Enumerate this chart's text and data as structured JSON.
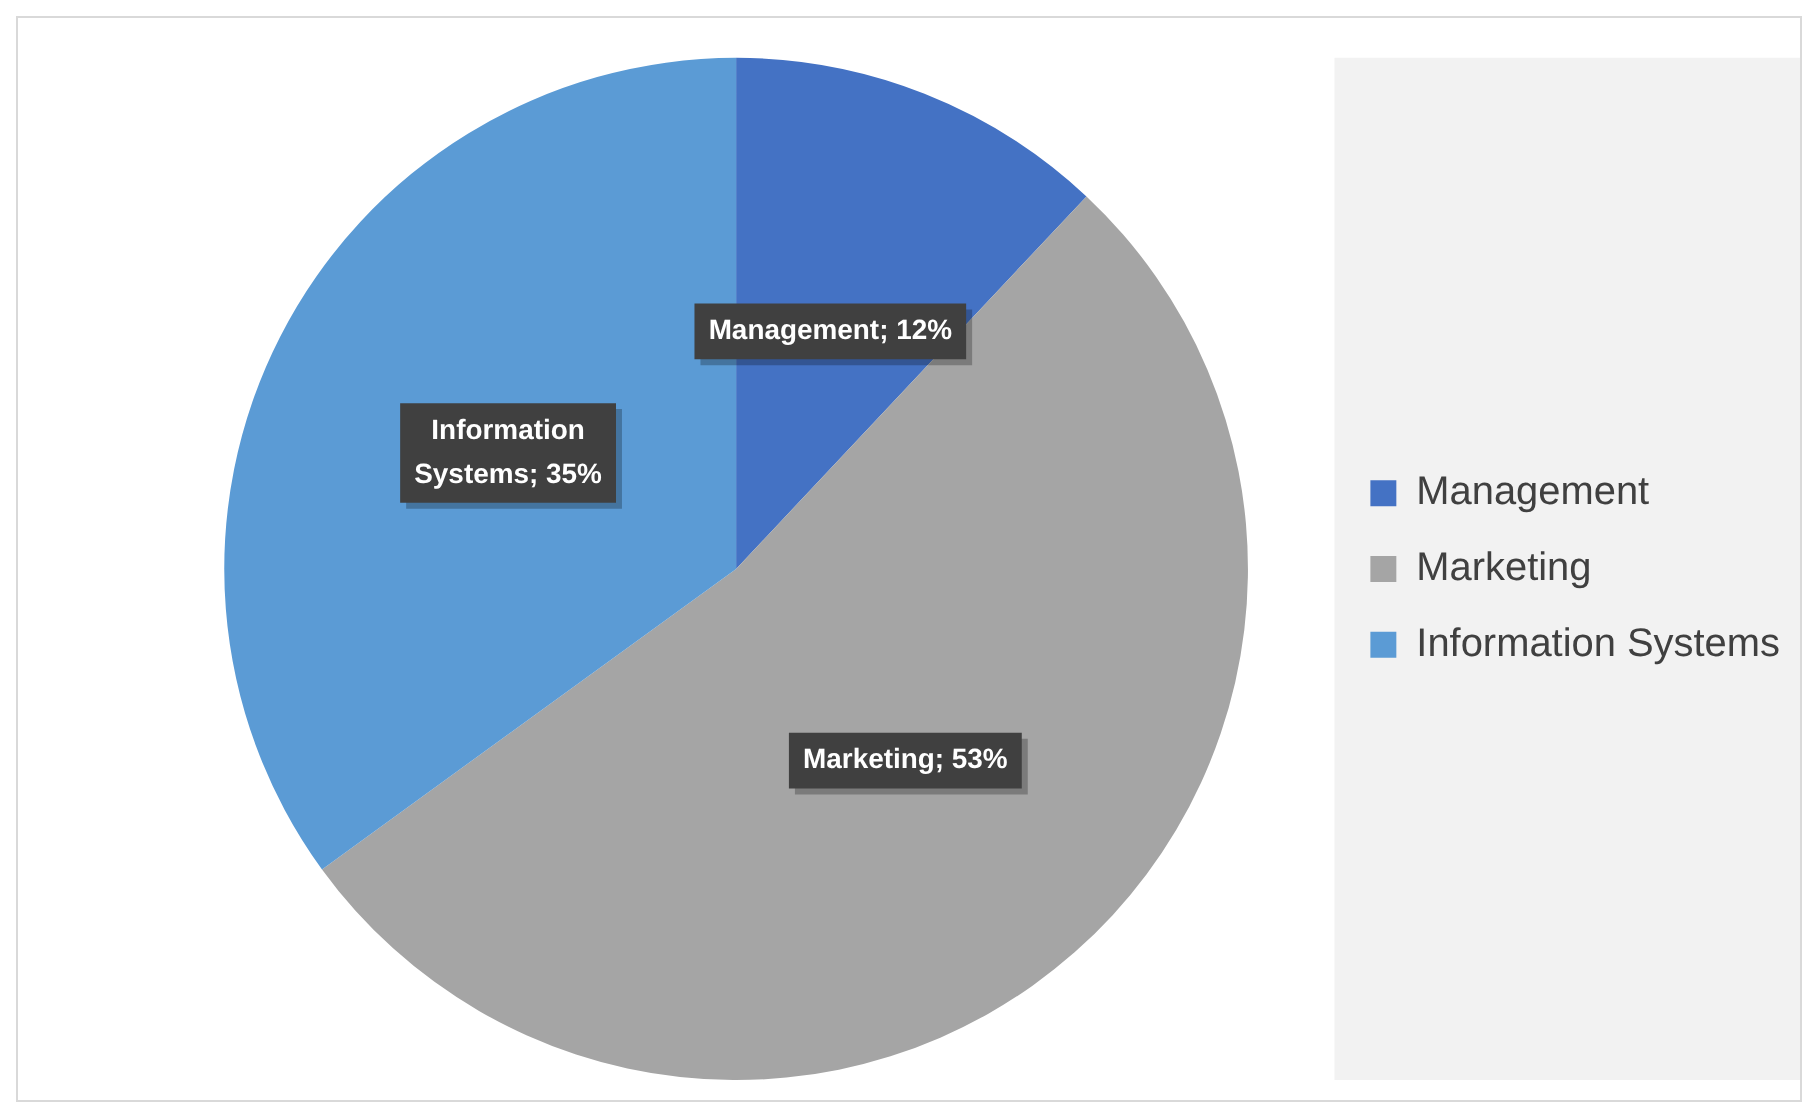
{
  "chart_data": {
    "type": "pie",
    "categories": [
      "Management",
      "Marketing",
      "Information Systems"
    ],
    "values": [
      12,
      53,
      35
    ],
    "colors": [
      "#4472c4",
      "#a5a5a5",
      "#5b9bd5"
    ],
    "value_labels": [
      "Management; 12%",
      "Marketing; 53%",
      "Information Systems; 35%"
    ],
    "legend": "right"
  }
}
